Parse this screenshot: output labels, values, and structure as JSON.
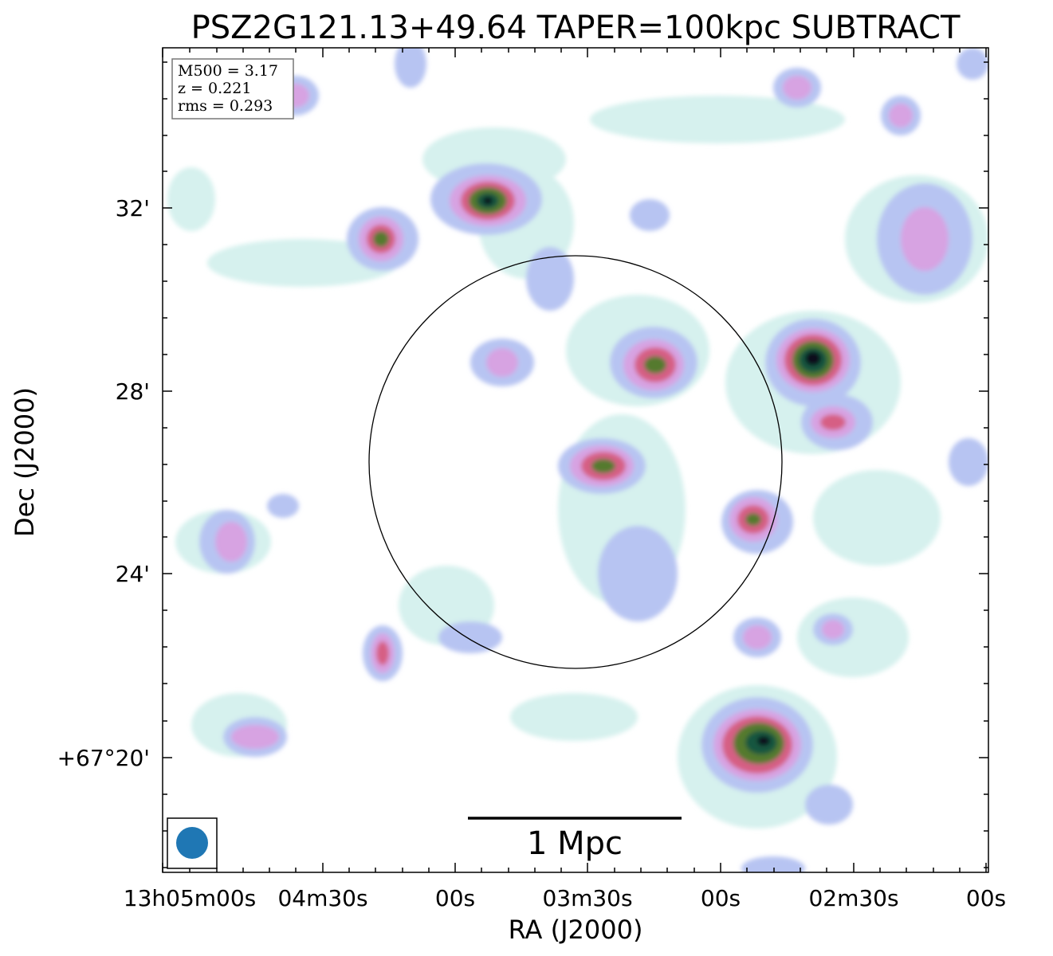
{
  "title": "PSZ2G121.13+49.64 TAPER=100kpc SUBTRACT",
  "info_box": {
    "m500": "M500 = 3.17",
    "z": "z = 0.221",
    "rms": "rms = 0.293"
  },
  "axes": {
    "x_label": "RA (J2000)",
    "y_label": "Dec (J2000)",
    "x_ticks": [
      "13h05m00s",
      "04m30s",
      "00s",
      "03m30s",
      "00s",
      "02m30s",
      "00s"
    ],
    "y_ticks": [
      "32'",
      "28'",
      "24'",
      "+67°20'"
    ]
  },
  "scale_bar": {
    "label": "1 Mpc"
  },
  "beam_icon": "beam-ellipse-icon",
  "colors": {
    "beam": "#1f77b4",
    "colormap": [
      "#d6f1ee",
      "#b7c4f2",
      "#d7a3e2",
      "#d65f84",
      "#557a2e",
      "#12573f",
      "#0b0b1e"
    ]
  }
}
